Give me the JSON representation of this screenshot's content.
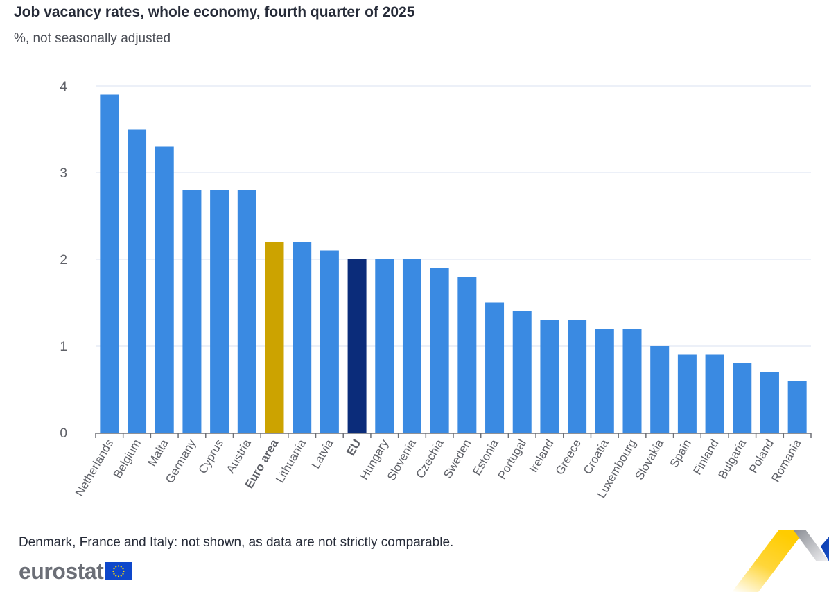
{
  "header": {
    "title": "Job vacancy rates, whole economy, fourth quarter of 2025",
    "subtitle": "%, not seasonally adjusted"
  },
  "footer": {
    "note": "Denmark, France and Italy: not shown, as data are not strictly comparable.",
    "logo_text": "eurostat"
  },
  "colors": {
    "country": "#3a8ae2",
    "euro_area": "#cca300",
    "eu": "#0b2c7a",
    "grid": "#e6ebf5",
    "axis": "#6d6f75",
    "tick_label": "#5f6168"
  },
  "chart_data": {
    "type": "bar",
    "title": "Job vacancy rates, whole economy, fourth quarter of 2025",
    "subtitle": "%, not seasonally adjusted",
    "xlabel": "",
    "ylabel": "",
    "ylim": [
      0,
      4
    ],
    "yticks": [
      0,
      1,
      2,
      3,
      4
    ],
    "grid": true,
    "legend": "none",
    "categories": [
      "Netherlands",
      "Belgium",
      "Malta",
      "Germany",
      "Cyprus",
      "Austria",
      "Euro area",
      "Lithuania",
      "Latvia",
      "EU",
      "Hungary",
      "Slovenia",
      "Czechia",
      "Sweden",
      "Estonia",
      "Portugal",
      "Ireland",
      "Greece",
      "Croatia",
      "Luxembourg",
      "Slovakia",
      "Spain",
      "Finland",
      "Bulgaria",
      "Poland",
      "Romania"
    ],
    "values": [
      3.9,
      3.5,
      3.3,
      2.8,
      2.8,
      2.8,
      2.2,
      2.2,
      2.1,
      2.0,
      2.0,
      2.0,
      1.9,
      1.8,
      1.5,
      1.4,
      1.3,
      1.3,
      1.2,
      1.2,
      1.0,
      0.9,
      0.9,
      0.8,
      0.7,
      0.6
    ],
    "highlight": {
      "Euro area": "euro_area",
      "EU": "eu"
    },
    "bold_labels": [
      "Euro area",
      "EU"
    ]
  }
}
